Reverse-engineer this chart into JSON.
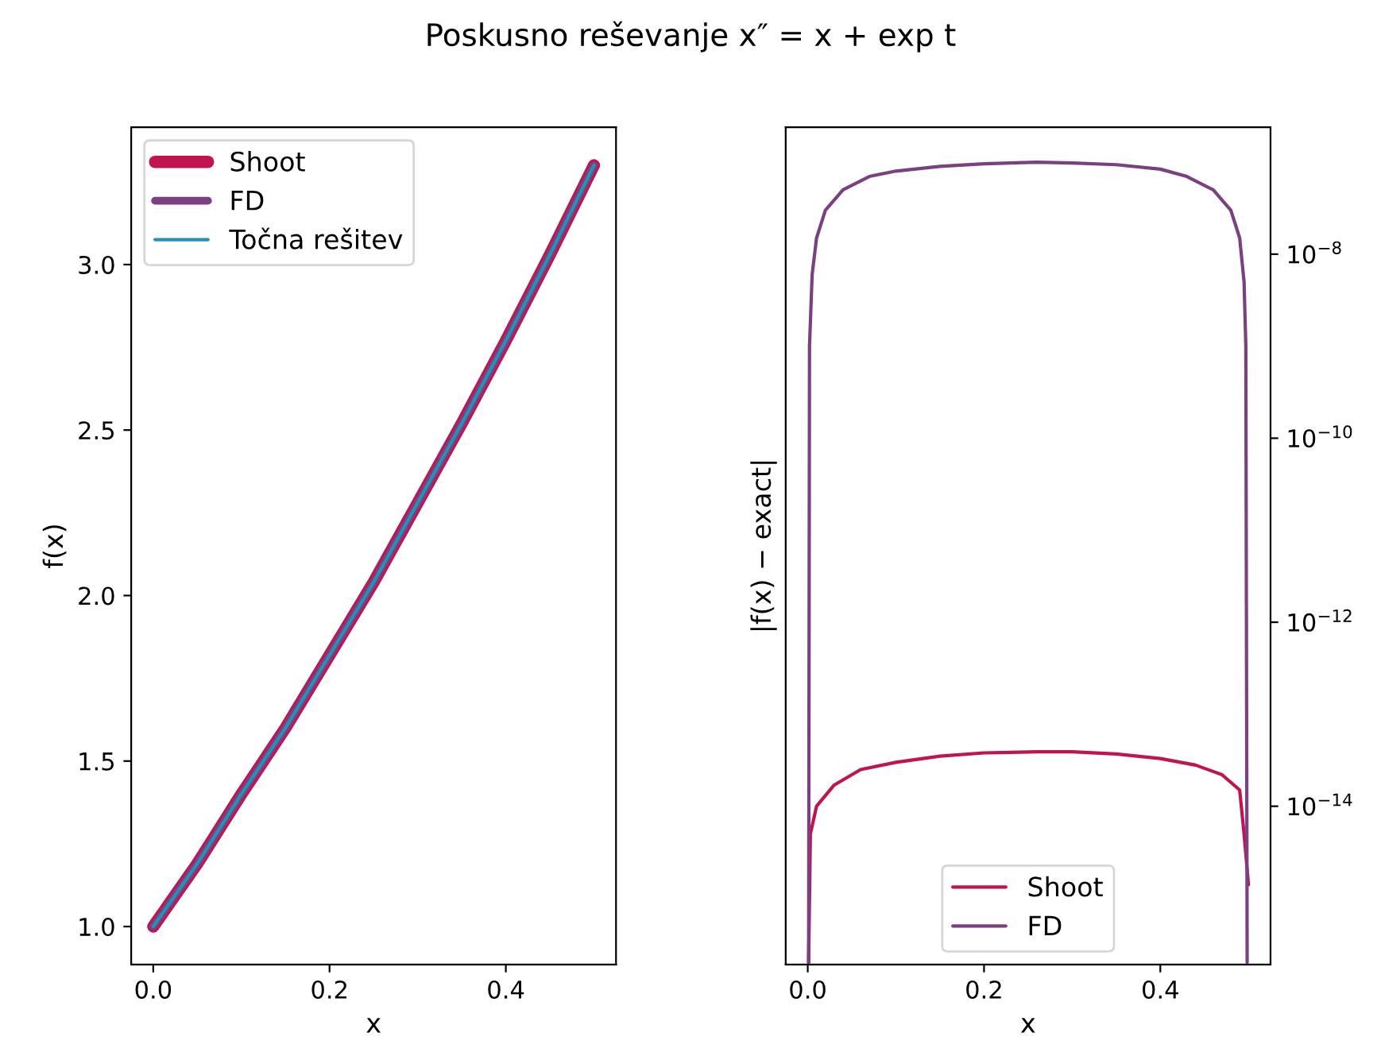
{
  "chart_data": [
    {
      "type": "line",
      "title": "Poskusno reševanje x″ = x + exp t",
      "xlabel": "x",
      "ylabel": "f(x)",
      "legend": "upper left",
      "xlim": [
        -0.025,
        0.525
      ],
      "xticks": [
        {
          "value": 0.0,
          "label": "0.0"
        },
        {
          "value": 0.2,
          "label": "0.2"
        },
        {
          "value": 0.4,
          "label": "0.4"
        }
      ],
      "ylim": [
        0.885,
        3.415
      ],
      "yticks": [
        {
          "value": 1.0,
          "label": "1.0"
        },
        {
          "value": 1.5,
          "label": "1.5"
        },
        {
          "value": 2.0,
          "label": "2.0"
        },
        {
          "value": 2.5,
          "label": "2.5"
        },
        {
          "value": 3.0,
          "label": "3.0"
        }
      ],
      "x": [
        0,
        0.05,
        0.1,
        0.15,
        0.2,
        0.25,
        0.3,
        0.35,
        0.4,
        0.45,
        0.5
      ],
      "series": [
        {
          "name": "Shoot",
          "color": "#c1134f",
          "values": [
            1.0,
            1.19,
            1.4,
            1.6,
            1.82,
            2.04,
            2.28,
            2.52,
            2.77,
            3.03,
            3.3
          ]
        },
        {
          "name": "FD",
          "color": "#7a4080",
          "values": [
            1.0,
            1.19,
            1.4,
            1.6,
            1.82,
            2.04,
            2.28,
            2.52,
            2.77,
            3.03,
            3.3
          ]
        },
        {
          "name": "Točna rešitev",
          "color": "#2592b5",
          "values": [
            1.0,
            1.19,
            1.4,
            1.6,
            1.82,
            2.04,
            2.28,
            2.52,
            2.77,
            3.03,
            3.3
          ]
        }
      ]
    },
    {
      "type": "line",
      "xlabel": "x",
      "ylabel": "|f(x) − exact|",
      "log": "y",
      "legend": "bottom",
      "xlim": [
        -0.025,
        0.525
      ],
      "xticks": [
        {
          "value": 0.0,
          "label": "0.0"
        },
        {
          "value": 0.2,
          "label": "0.2"
        },
        {
          "value": 0.4,
          "label": "0.4"
        }
      ],
      "ylim": [
        1.9e-16,
        2.4e-07
      ],
      "yticks": [
        {
          "value": 1e-08,
          "label": "10$^{−8}$"
        },
        {
          "value": 1e-10,
          "label": "10$^{−10}$"
        },
        {
          "value": 1e-12,
          "label": "10$^{−12}$"
        },
        {
          "value": 1e-14,
          "label": "10$^{−14}$"
        }
      ],
      "series": [
        {
          "name": "Shoot",
          "color": "#c1134f",
          "x": [
            0.001,
            0.003,
            0.01,
            0.03,
            0.06,
            0.1,
            0.15,
            0.2,
            0.26,
            0.3,
            0.35,
            0.4,
            0.44,
            0.47,
            0.49,
            0.495,
            0.5
          ],
          "values": [
            2e-16,
            5e-15,
            1e-14,
            1.7e-14,
            2.5e-14,
            3e-14,
            3.5e-14,
            3.8e-14,
            3.9e-14,
            3.9e-14,
            3.7e-14,
            3.3e-14,
            2.8e-14,
            2.2e-14,
            1.5e-14,
            5e-15,
            1.4e-15
          ]
        },
        {
          "name": "FD",
          "color": "#7a4080",
          "x": [
            0.001,
            0.002,
            0.005,
            0.01,
            0.02,
            0.04,
            0.07,
            0.1,
            0.15,
            0.2,
            0.26,
            0.3,
            0.35,
            0.4,
            0.43,
            0.46,
            0.48,
            0.49,
            0.495,
            0.497,
            0.4985
          ],
          "values": [
            2e-16,
            1e-09,
            6e-09,
            1.5e-08,
            3e-08,
            5e-08,
            7e-08,
            8e-08,
            9e-08,
            9.6e-08,
            1e-07,
            9.8e-08,
            9.4e-08,
            8.4e-08,
            7e-08,
            5e-08,
            3e-08,
            1.5e-08,
            5e-09,
            1e-09,
            2e-16
          ]
        }
      ]
    }
  ]
}
